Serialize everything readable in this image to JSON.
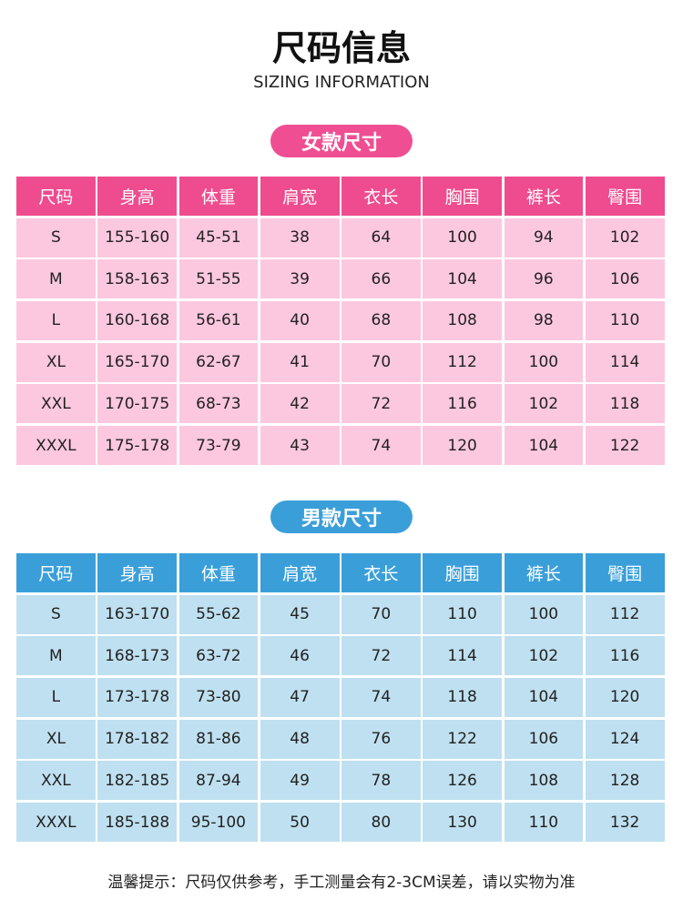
{
  "header": {
    "title": "尺码信息",
    "subtitle": "SIZING INFORMATION"
  },
  "sections": [
    {
      "label": "女款尺寸",
      "table": {
        "headers": [
          "尺码",
          "身高",
          "体重",
          "肩宽",
          "衣长",
          "胸围",
          "裤长",
          "臀围"
        ],
        "rows": [
          [
            "S",
            "155-160",
            "45-51",
            38,
            64,
            100,
            94,
            102
          ],
          [
            "M",
            "158-163",
            "51-55",
            39,
            66,
            104,
            96,
            106
          ],
          [
            "L",
            "160-168",
            "56-61",
            40,
            68,
            108,
            98,
            110
          ],
          [
            "XL",
            "165-170",
            "62-67",
            41,
            70,
            112,
            100,
            114
          ],
          [
            "XXL",
            "170-175",
            "68-73",
            42,
            72,
            116,
            102,
            118
          ],
          [
            "XXXL",
            "175-178",
            "73-79",
            43,
            74,
            120,
            104,
            122
          ]
        ]
      }
    },
    {
      "label": "男款尺寸",
      "table": {
        "headers": [
          "尺码",
          "身高",
          "体重",
          "肩宽",
          "衣长",
          "胸围",
          "裤长",
          "臀围"
        ],
        "rows": [
          [
            "S",
            "163-170",
            "55-62",
            45,
            70,
            110,
            100,
            112
          ],
          [
            "M",
            "168-173",
            "63-72",
            46,
            72,
            114,
            102,
            116
          ],
          [
            "L",
            "173-178",
            "73-80",
            47,
            74,
            118,
            104,
            120
          ],
          [
            "XL",
            "178-182",
            "81-86",
            48,
            76,
            122,
            106,
            124
          ],
          [
            "XXL",
            "182-185",
            "87-94",
            49,
            78,
            126,
            108,
            128
          ],
          [
            "XXXL",
            "185-188",
            "95-100",
            50,
            80,
            130,
            110,
            132
          ]
        ]
      }
    }
  ],
  "footer": {
    "note": "温馨提示：尺码仅供参考，手工测量会有2-3CM误差，请以实物为准"
  }
}
